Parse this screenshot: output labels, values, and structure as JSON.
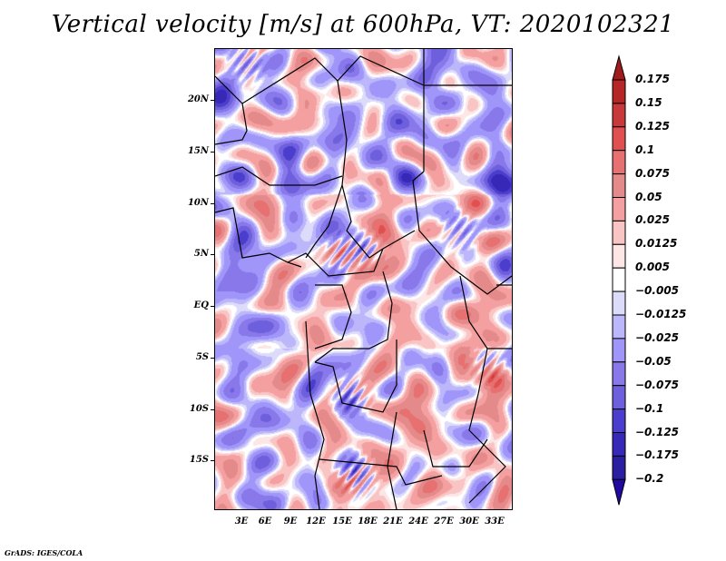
{
  "title": "Vertical velocity [m/s] at 600hPa, VT: 2020102321",
  "credit": "GrADS: IGES/COLA",
  "map": {
    "variable": "Vertical velocity",
    "units": "m/s",
    "level": "600hPa",
    "valid_time": "2020102321",
    "region": "Central Africa",
    "y_axis_labels": [
      "20N",
      "15N",
      "10N",
      "5N",
      "EQ",
      "5S",
      "10S",
      "15S"
    ],
    "x_axis_labels": [
      "3E",
      "6E",
      "9E",
      "12E",
      "15E",
      "18E",
      "21E",
      "24E",
      "27E",
      "30E",
      "33E"
    ]
  },
  "colorbar": {
    "labels": [
      "0.175",
      "0.15",
      "0.125",
      "0.1",
      "0.075",
      "0.05",
      "0.025",
      "0.0125",
      "0.005",
      "-0.005",
      "-0.0125",
      "-0.025",
      "-0.05",
      "-0.075",
      "-0.1",
      "-0.125",
      "-0.175",
      "-0.2"
    ],
    "colors": [
      "#a01c1c",
      "#b52626",
      "#c83a3a",
      "#e05050",
      "#e77070",
      "#e48a8a",
      "#f4a0a0",
      "#f9c4c4",
      "#fde6e6",
      "#ffffff",
      "#dcdcfa",
      "#bcb6fa",
      "#a096fa",
      "#8878ea",
      "#6e60dc",
      "#4c3ecc",
      "#3828b8",
      "#2c1ea0",
      "#2008a0"
    ]
  }
}
